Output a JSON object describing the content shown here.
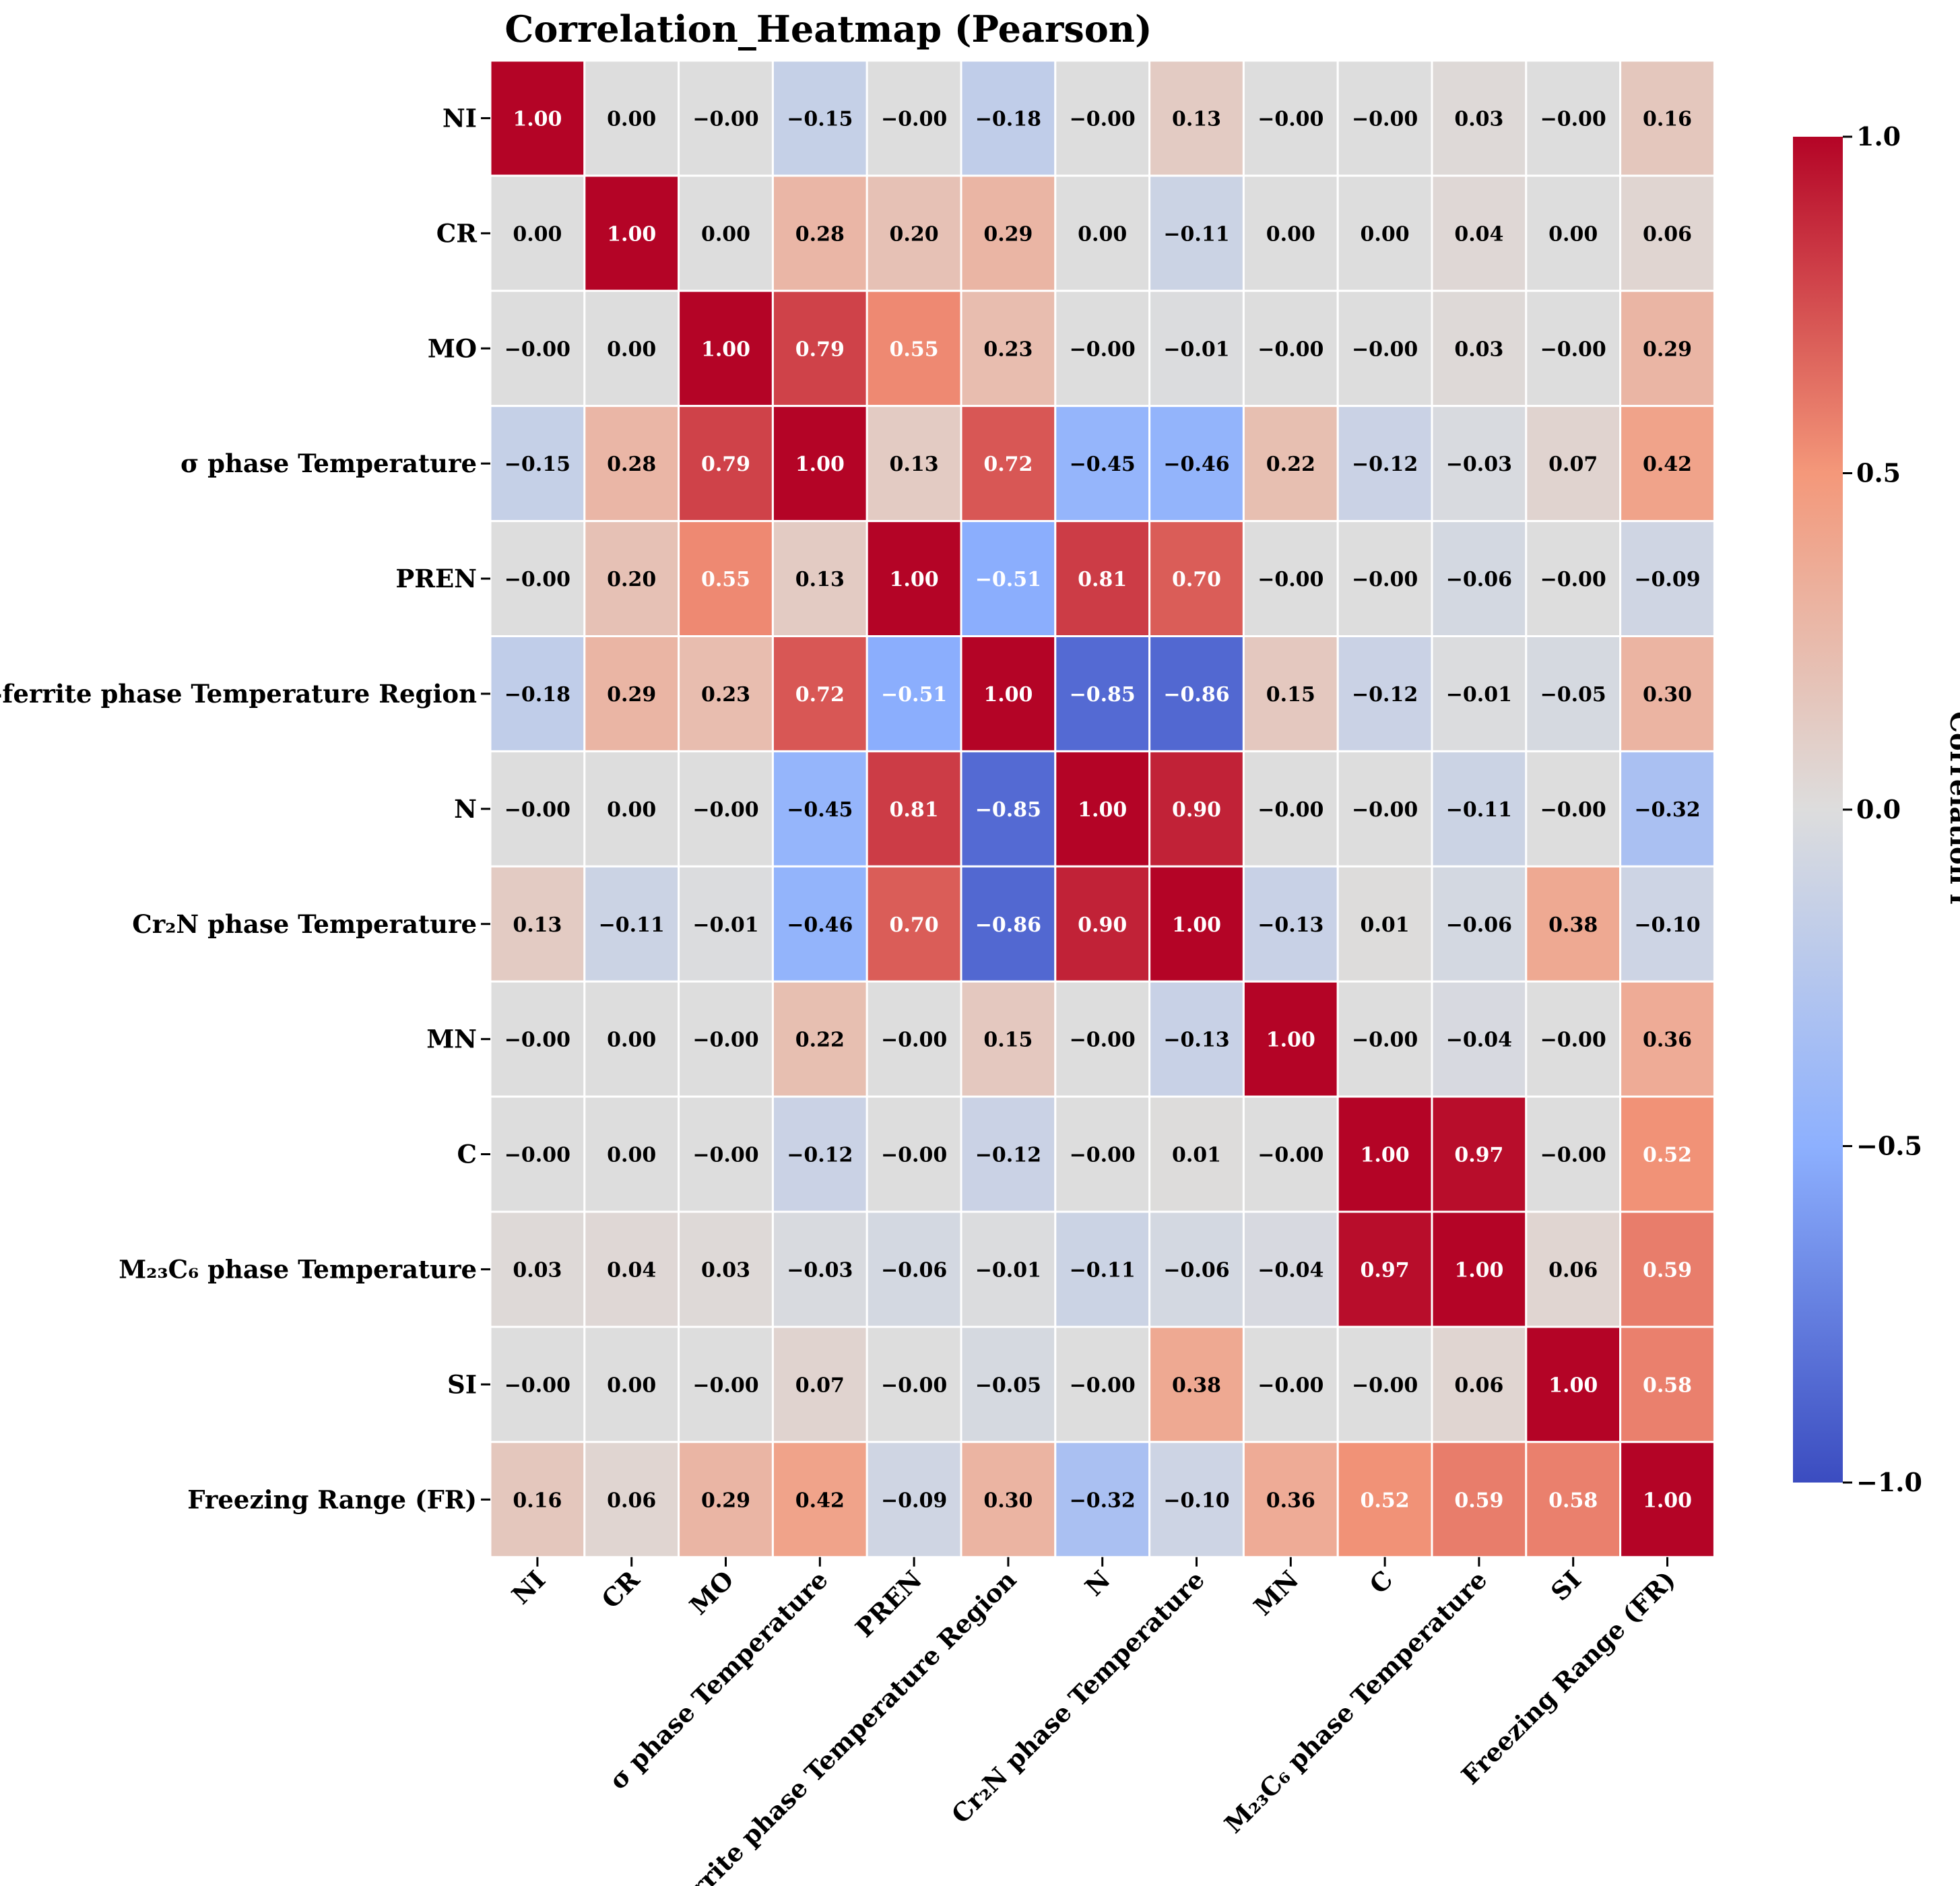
{
  "chart_data": {
    "type": "heatmap",
    "title": "Correlation_Heatmap (Pearson)",
    "row_labels": [
      "NI",
      "CR",
      "MO",
      "σ phase Temperature",
      "PREN",
      "δ-ferrite phase Temperature Region",
      "N",
      "Cr₂N phase Temperature",
      "MN",
      "C",
      "M₂₃C₆ phase Temperature",
      "SI",
      "Freezing Range (FR)"
    ],
    "col_labels": [
      "NI",
      "CR",
      "MO",
      "σ phase Temperature",
      "PREN",
      "δ-ferrite phase Temperature Region",
      "N",
      "Cr₂N phase Temperature",
      "MN",
      "C",
      "M₂₃C₆ phase Temperature",
      "SI",
      "Freezing Range (FR)"
    ],
    "values": [
      [
        1.0,
        0.0,
        -0.0,
        -0.15,
        -0.0,
        -0.18,
        -0.0,
        0.13,
        -0.0,
        -0.0,
        0.03,
        -0.0,
        0.16
      ],
      [
        0.0,
        1.0,
        0.0,
        0.28,
        0.2,
        0.29,
        0.0,
        -0.11,
        0.0,
        0.0,
        0.04,
        0.0,
        0.06
      ],
      [
        -0.0,
        0.0,
        1.0,
        0.79,
        0.55,
        0.23,
        -0.0,
        -0.01,
        -0.0,
        -0.0,
        0.03,
        -0.0,
        0.29
      ],
      [
        -0.15,
        0.28,
        0.79,
        1.0,
        0.13,
        0.72,
        -0.45,
        -0.46,
        0.22,
        -0.12,
        -0.03,
        0.07,
        0.42
      ],
      [
        -0.0,
        0.2,
        0.55,
        0.13,
        1.0,
        -0.51,
        0.81,
        0.7,
        -0.0,
        -0.0,
        -0.06,
        -0.0,
        -0.09
      ],
      [
        -0.18,
        0.29,
        0.23,
        0.72,
        -0.51,
        1.0,
        -0.85,
        -0.86,
        0.15,
        -0.12,
        -0.01,
        -0.05,
        0.3
      ],
      [
        -0.0,
        0.0,
        -0.0,
        -0.45,
        0.81,
        -0.85,
        1.0,
        0.9,
        -0.0,
        -0.0,
        -0.11,
        -0.0,
        -0.32
      ],
      [
        0.13,
        -0.11,
        -0.01,
        -0.46,
        0.7,
        -0.86,
        0.9,
        1.0,
        -0.13,
        0.01,
        -0.06,
        0.38,
        -0.1
      ],
      [
        -0.0,
        0.0,
        -0.0,
        0.22,
        -0.0,
        0.15,
        -0.0,
        -0.13,
        1.0,
        -0.0,
        -0.04,
        -0.0,
        0.36
      ],
      [
        -0.0,
        0.0,
        -0.0,
        -0.12,
        -0.0,
        -0.12,
        -0.0,
        0.01,
        -0.0,
        1.0,
        0.97,
        -0.0,
        0.52
      ],
      [
        0.03,
        0.04,
        0.03,
        -0.03,
        -0.06,
        -0.01,
        -0.11,
        -0.06,
        -0.04,
        0.97,
        1.0,
        0.06,
        0.59
      ],
      [
        -0.0,
        0.0,
        -0.0,
        0.07,
        -0.0,
        -0.05,
        -0.0,
        0.38,
        -0.0,
        -0.0,
        0.06,
        1.0,
        0.58
      ],
      [
        0.16,
        0.06,
        0.29,
        0.42,
        -0.09,
        0.3,
        -0.32,
        -0.1,
        0.36,
        0.52,
        0.59,
        0.58,
        1.0
      ]
    ],
    "value_labels": [
      [
        "1.00",
        "0.00",
        "−0.00",
        "−0.15",
        "−0.00",
        "−0.18",
        "−0.00",
        "0.13",
        "−0.00",
        "−0.00",
        "0.03",
        "−0.00",
        "0.16"
      ],
      [
        "0.00",
        "1.00",
        "0.00",
        "0.28",
        "0.20",
        "0.29",
        "0.00",
        "−0.11",
        "0.00",
        "0.00",
        "0.04",
        "0.00",
        "0.06"
      ],
      [
        "−0.00",
        "0.00",
        "1.00",
        "0.79",
        "0.55",
        "0.23",
        "−0.00",
        "−0.01",
        "−0.00",
        "−0.00",
        "0.03",
        "−0.00",
        "0.29"
      ],
      [
        "−0.15",
        "0.28",
        "0.79",
        "1.00",
        "0.13",
        "0.72",
        "−0.45",
        "−0.46",
        "0.22",
        "−0.12",
        "−0.03",
        "0.07",
        "0.42"
      ],
      [
        "−0.00",
        "0.20",
        "0.55",
        "0.13",
        "1.00",
        "−0.51",
        "0.81",
        "0.70",
        "−0.00",
        "−0.00",
        "−0.06",
        "−0.00",
        "−0.09"
      ],
      [
        "−0.18",
        "0.29",
        "0.23",
        "0.72",
        "−0.51",
        "1.00",
        "−0.85",
        "−0.86",
        "0.15",
        "−0.12",
        "−0.01",
        "−0.05",
        "0.30"
      ],
      [
        "−0.00",
        "0.00",
        "−0.00",
        "−0.45",
        "0.81",
        "−0.85",
        "1.00",
        "0.90",
        "−0.00",
        "−0.00",
        "−0.11",
        "−0.00",
        "−0.32"
      ],
      [
        "0.13",
        "−0.11",
        "−0.01",
        "−0.46",
        "0.70",
        "−0.86",
        "0.90",
        "1.00",
        "−0.13",
        "0.01",
        "−0.06",
        "0.38",
        "−0.10"
      ],
      [
        "−0.00",
        "0.00",
        "−0.00",
        "0.22",
        "−0.00",
        "0.15",
        "−0.00",
        "−0.13",
        "1.00",
        "−0.00",
        "−0.04",
        "−0.00",
        "0.36"
      ],
      [
        "−0.00",
        "0.00",
        "−0.00",
        "−0.12",
        "−0.00",
        "−0.12",
        "−0.00",
        "0.01",
        "−0.00",
        "1.00",
        "0.97",
        "−0.00",
        "0.52"
      ],
      [
        "0.03",
        "0.04",
        "0.03",
        "−0.03",
        "−0.06",
        "−0.01",
        "−0.11",
        "−0.06",
        "−0.04",
        "0.97",
        "1.00",
        "0.06",
        "0.59"
      ],
      [
        "−0.00",
        "0.00",
        "−0.00",
        "0.07",
        "−0.00",
        "−0.05",
        "−0.00",
        "0.38",
        "−0.00",
        "−0.00",
        "0.06",
        "1.00",
        "0.58"
      ],
      [
        "0.16",
        "0.06",
        "0.29",
        "0.42",
        "−0.09",
        "0.30",
        "−0.32",
        "−0.10",
        "0.36",
        "0.52",
        "0.59",
        "0.58",
        "1.00"
      ]
    ],
    "vmin": -1.0,
    "vmax": 1.0,
    "colormap": "coolwarm",
    "colormap_stops": [
      "#3b4cc0",
      "#8db0fe",
      "#dddddd",
      "#f4987a",
      "#b40426"
    ],
    "colorbar": {
      "label": "Correlation r",
      "ticks": [
        1.0,
        0.5,
        0.0,
        -0.5,
        -1.0
      ],
      "tick_labels": [
        "1.0",
        "0.5",
        "0.0",
        "−0.5",
        "−1.0"
      ]
    },
    "annotation_text_colors": {
      "dark_cell": "#ffffff",
      "light_cell": "#000000"
    }
  }
}
